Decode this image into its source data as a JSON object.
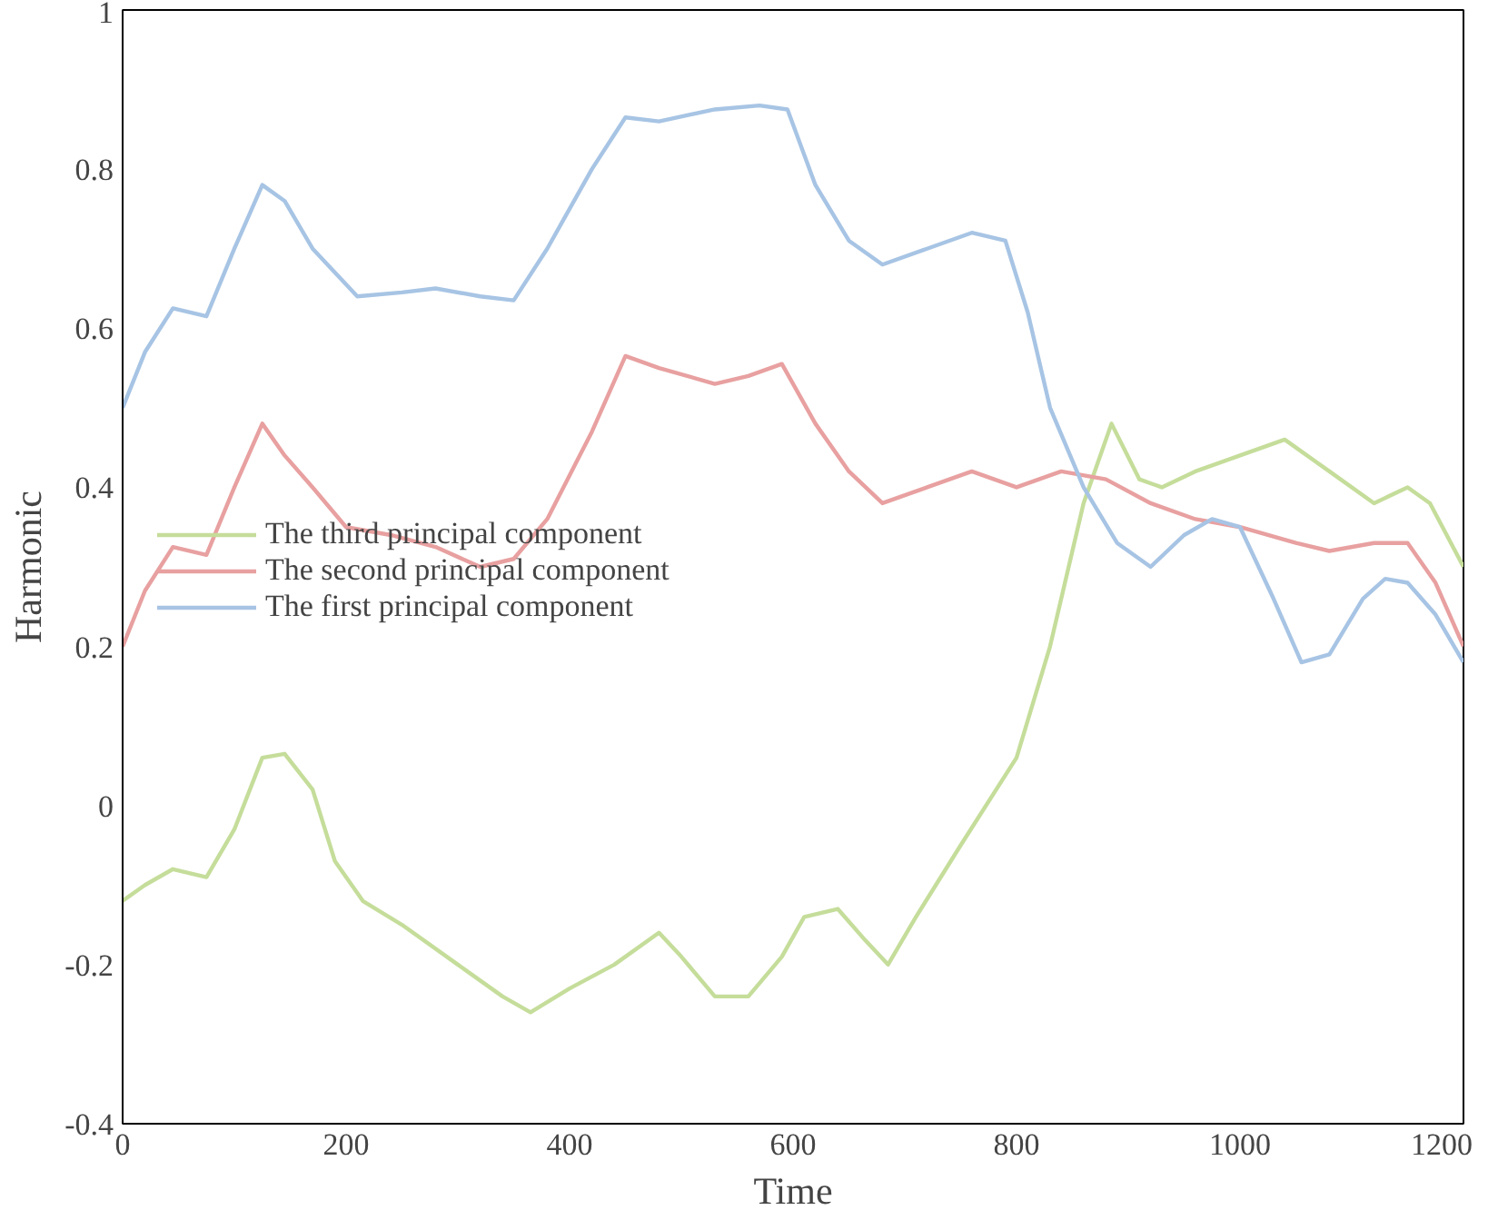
{
  "chart_data": {
    "type": "line",
    "xlabel": "Time",
    "ylabel": "Harmonic",
    "xlim": [
      0,
      1200
    ],
    "xticks": [
      0,
      200,
      400,
      600,
      800,
      1000,
      1200
    ],
    "ylim": [
      -0.4,
      1
    ],
    "yticks": [
      -0.4,
      -0.2,
      0,
      0.2,
      0.4,
      0.6,
      0.8,
      1
    ],
    "grid": false,
    "legend": "left",
    "marker": "none",
    "line_style": "solid",
    "series": [
      {
        "name": "The third principal component",
        "color": "#c5dd9a",
        "x": [
          0,
          20,
          45,
          75,
          100,
          125,
          145,
          170,
          190,
          215,
          250,
          300,
          340,
          365,
          400,
          440,
          480,
          500,
          530,
          560,
          590,
          610,
          640,
          665,
          685,
          710,
          750,
          800,
          830,
          860,
          885,
          910,
          930,
          960,
          1000,
          1040,
          1080,
          1120,
          1150,
          1170,
          1200
        ],
        "values": [
          -0.12,
          -0.1,
          -0.08,
          -0.09,
          -0.03,
          0.06,
          0.065,
          0.02,
          -0.07,
          -0.12,
          -0.15,
          -0.2,
          -0.24,
          -0.26,
          -0.23,
          -0.2,
          -0.16,
          -0.19,
          -0.24,
          -0.24,
          -0.19,
          -0.14,
          -0.13,
          -0.17,
          -0.2,
          -0.14,
          -0.05,
          0.06,
          0.2,
          0.38,
          0.48,
          0.41,
          0.4,
          0.42,
          0.44,
          0.46,
          0.42,
          0.38,
          0.4,
          0.38,
          0.3
        ]
      },
      {
        "name": "The second principal component",
        "color": "#e8a0a0",
        "x": [
          0,
          20,
          45,
          75,
          100,
          125,
          145,
          170,
          200,
          240,
          280,
          320,
          350,
          380,
          420,
          450,
          480,
          530,
          560,
          590,
          620,
          650,
          680,
          720,
          760,
          800,
          840,
          880,
          920,
          960,
          1000,
          1050,
          1080,
          1120,
          1150,
          1175,
          1200
        ],
        "values": [
          0.2,
          0.27,
          0.325,
          0.315,
          0.4,
          0.48,
          0.44,
          0.4,
          0.35,
          0.34,
          0.325,
          0.3,
          0.31,
          0.36,
          0.47,
          0.565,
          0.55,
          0.53,
          0.54,
          0.555,
          0.48,
          0.42,
          0.38,
          0.4,
          0.42,
          0.4,
          0.42,
          0.41,
          0.38,
          0.36,
          0.35,
          0.33,
          0.32,
          0.33,
          0.33,
          0.28,
          0.2
        ]
      },
      {
        "name": "The first principal component",
        "color": "#a7c4e4",
        "x": [
          0,
          20,
          45,
          75,
          100,
          125,
          145,
          170,
          210,
          250,
          280,
          320,
          350,
          380,
          420,
          450,
          480,
          530,
          570,
          595,
          620,
          650,
          680,
          720,
          760,
          790,
          810,
          830,
          860,
          890,
          920,
          950,
          975,
          1000,
          1030,
          1055,
          1080,
          1110,
          1130,
          1150,
          1175,
          1200
        ],
        "values": [
          0.5,
          0.57,
          0.625,
          0.615,
          0.7,
          0.78,
          0.76,
          0.7,
          0.64,
          0.645,
          0.65,
          0.64,
          0.635,
          0.7,
          0.8,
          0.865,
          0.86,
          0.875,
          0.88,
          0.875,
          0.78,
          0.71,
          0.68,
          0.7,
          0.72,
          0.71,
          0.62,
          0.5,
          0.4,
          0.33,
          0.3,
          0.34,
          0.36,
          0.35,
          0.26,
          0.18,
          0.19,
          0.26,
          0.285,
          0.28,
          0.24,
          0.18
        ]
      }
    ]
  }
}
